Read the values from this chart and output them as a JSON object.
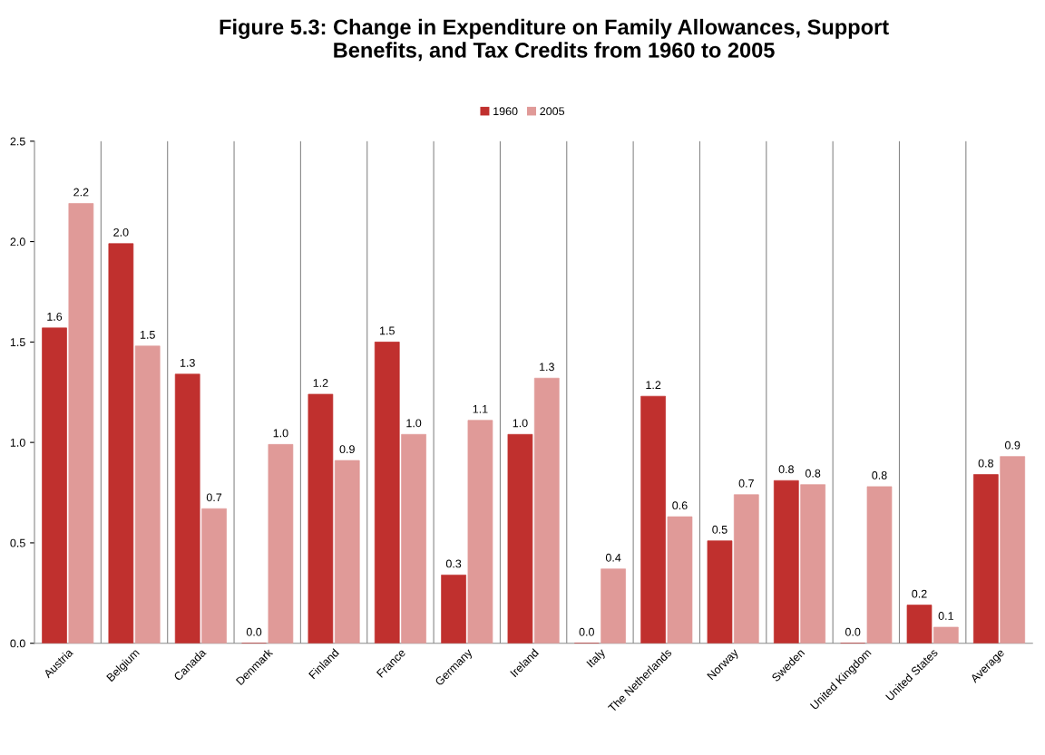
{
  "chart_data": {
    "type": "bar",
    "title": "Figure 5.3: Change in Expenditure on Family Allowances, Support\nBenefits, and Tax Credits from 1960 to 2005",
    "categories": [
      "Austria",
      "Belgium",
      "Canada",
      "Denmark",
      "Finland",
      "France",
      "Germany",
      "Ireland",
      "Italy",
      "The Netherlands",
      "Norway",
      "Sweden",
      "United Kingdom",
      "United States",
      "Average"
    ],
    "series": [
      {
        "name": "1960",
        "color": "#c0302e",
        "values": [
          1.57,
          1.99,
          1.34,
          0.0,
          1.24,
          1.5,
          0.34,
          1.04,
          0.0,
          1.23,
          0.51,
          0.81,
          0.0,
          0.19,
          0.84
        ],
        "value_labels": [
          "1.6",
          "2.0",
          "1.3",
          "0.0",
          "1.2",
          "1.5",
          "0.3",
          "1.0",
          "0.0",
          "1.2",
          "0.5",
          "0.8",
          "0.0",
          "0.2",
          "0.8"
        ]
      },
      {
        "name": "2005",
        "color": "#e09a98",
        "values": [
          2.19,
          1.48,
          0.67,
          0.99,
          0.91,
          1.04,
          1.11,
          1.32,
          0.37,
          0.63,
          0.74,
          0.79,
          0.78,
          0.08,
          0.93
        ],
        "value_labels": [
          "2.2",
          "1.5",
          "0.7",
          "1.0",
          "0.9",
          "1.0",
          "1.1",
          "1.3",
          "0.4",
          "0.6",
          "0.7",
          "0.8",
          "0.8",
          "0.1",
          "0.9"
        ]
      }
    ],
    "ylim": [
      0,
      2.5
    ],
    "yticks": [
      {
        "value": 0,
        "label": "0.0"
      },
      {
        "value": 0.5,
        "label": "0.5"
      },
      {
        "value": 1,
        "label": "1.0"
      },
      {
        "value": 1.5,
        "label": "1.5"
      },
      {
        "value": 2,
        "label": "2.0"
      },
      {
        "value": 2.5,
        "label": "2.5"
      }
    ],
    "grid": "x",
    "legend": "top"
  }
}
